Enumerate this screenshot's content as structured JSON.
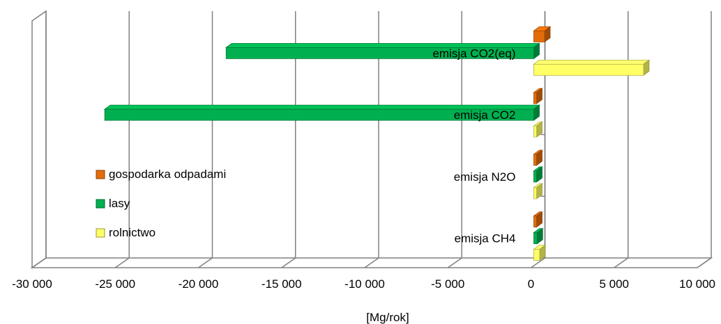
{
  "chart_data": {
    "type": "bar",
    "orientation": "horizontal",
    "three_d": true,
    "categories": [
      "emisja CO2(eq)",
      "emisja CO2",
      "emisja N2O",
      "emisja CH4"
    ],
    "series": [
      {
        "name": "gospodarka odpadami",
        "color": "#e36c0a",
        "values": [
          650,
          100,
          100,
          100
        ]
      },
      {
        "name": "lasy",
        "color": "#00b050",
        "values": [
          -18500,
          -25800,
          100,
          200
        ]
      },
      {
        "name": "rolnictwo",
        "color": "#ffff66",
        "values": [
          6600,
          0,
          100,
          350
        ]
      }
    ],
    "xlim": [
      -30000,
      10000
    ],
    "xticks": [
      -30000,
      -25000,
      -20000,
      -15000,
      -10000,
      -5000,
      0,
      5000,
      10000
    ],
    "xtick_labels": [
      "-30 000",
      "-25 000",
      "-20 000",
      "-15 000",
      "-10 000",
      "-5 000",
      "0",
      "5 000",
      "10 000"
    ],
    "xlabel": "[Mg/rok]",
    "ylabel": "",
    "title": "",
    "grid": true,
    "legend_position": "left-inside"
  }
}
